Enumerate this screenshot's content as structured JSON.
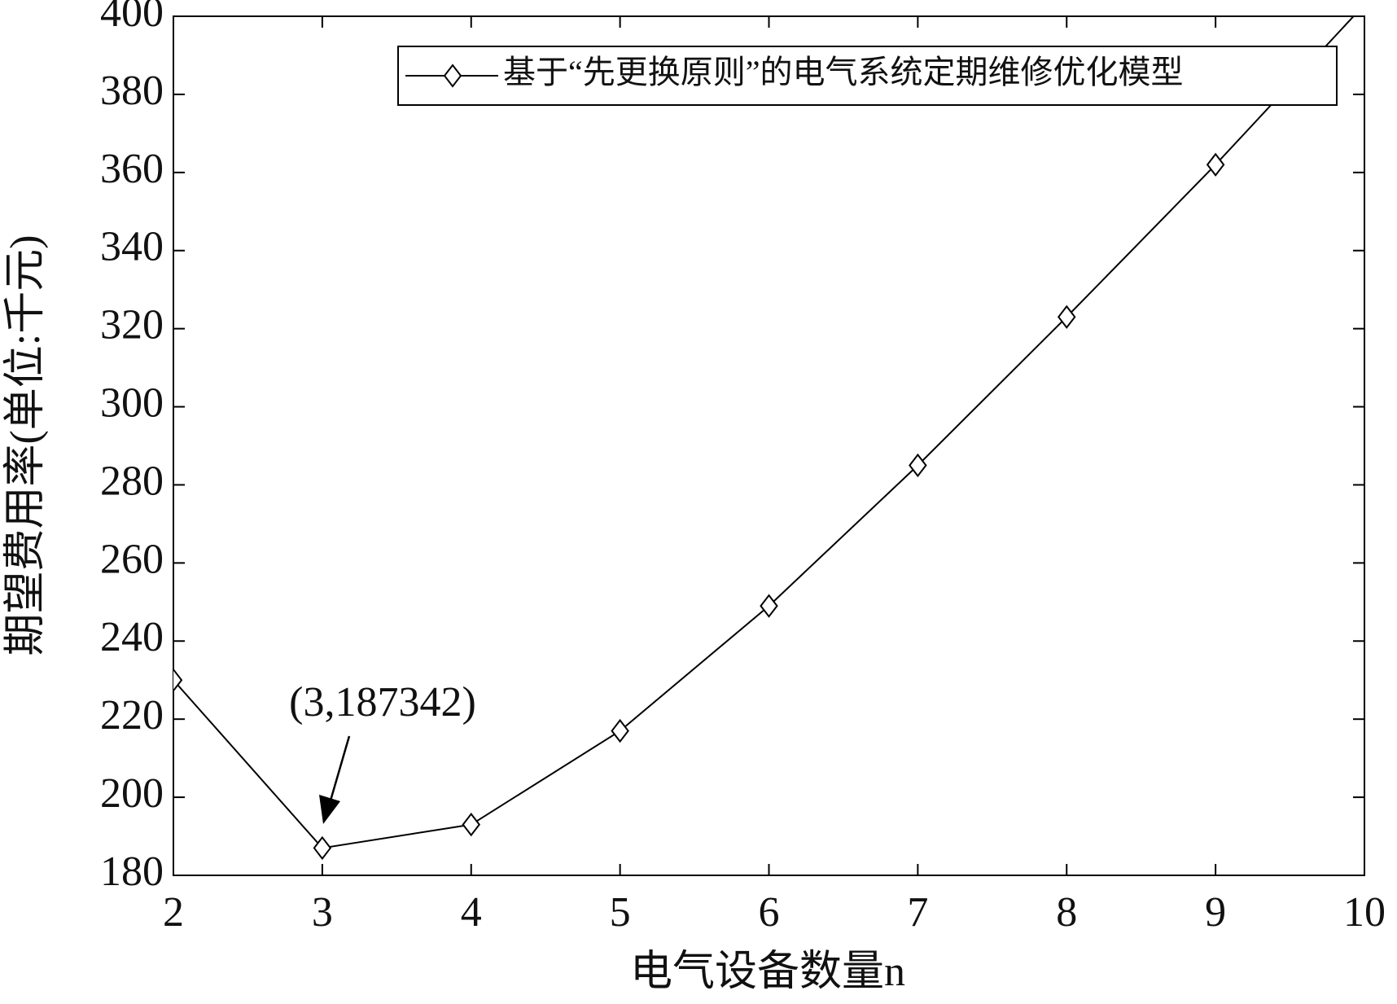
{
  "chart_data": {
    "type": "line",
    "x": [
      2,
      3,
      4,
      5,
      6,
      7,
      8,
      9,
      10
    ],
    "series": [
      {
        "name": "基于“先更换原则”的电气系统定期维修优化模型",
        "color": "#000000",
        "values": [
          230,
          187,
          193,
          217,
          249,
          285,
          323,
          362,
          403
        ]
      }
    ],
    "xlim": [
      2,
      10
    ],
    "xticks": [
      2,
      3,
      4,
      5,
      6,
      7,
      8,
      9,
      10
    ],
    "ylim": [
      180,
      400
    ],
    "yticks": [
      180,
      200,
      220,
      240,
      260,
      280,
      300,
      320,
      340,
      360,
      380,
      400
    ],
    "xlabel": "电气设备数量n",
    "ylabel": "期望费用率(单位:千元)",
    "annotation": "(3,187342)",
    "legend": "upper right",
    "grid": false
  }
}
